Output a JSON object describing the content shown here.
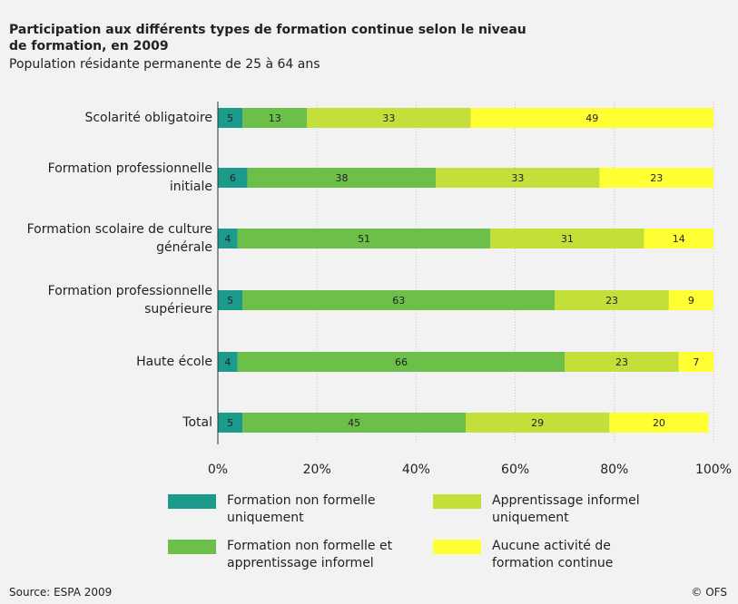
{
  "chart_data": {
    "type": "stacked-bar-horizontal",
    "title": "Participation aux différents types de formation continue selon le niveau\nde formation, en 2009",
    "subtitle": "Population résidante permanente de 25 à 64 ans",
    "categories": [
      "Scolarité obligatoire",
      "Formation professionnelle\ninitiale",
      "Formation scolaire de culture\ngénérale",
      "Formation professionnelle\nsupérieure",
      "Haute école",
      "Total"
    ],
    "series": [
      {
        "name": "Formation non formelle\nuniquement",
        "color": "#1c9a8c",
        "values": [
          5,
          6,
          4,
          5,
          4,
          5
        ]
      },
      {
        "name": "Formation non formelle et\napprentissage informel",
        "color": "#6cc04a",
        "values": [
          13,
          38,
          51,
          63,
          66,
          45
        ]
      },
      {
        "name": "Apprentissage informel\nuniquement",
        "color": "#c4de3a",
        "values": [
          33,
          33,
          31,
          23,
          23,
          29
        ]
      },
      {
        "name": "Aucune activité de\nformation continue",
        "color": "#ffff33",
        "values": [
          49,
          23,
          14,
          9,
          7,
          20
        ]
      }
    ],
    "xlim": [
      0,
      100
    ],
    "xticks": [
      {
        "value": 0,
        "label": "0%"
      },
      {
        "value": 20,
        "label": "20%"
      },
      {
        "value": 40,
        "label": "40%"
      },
      {
        "value": 60,
        "label": "60%"
      },
      {
        "value": 80,
        "label": "80%"
      },
      {
        "value": 100,
        "label": "100%"
      }
    ],
    "grid": true,
    "source": "Source: ESPA 2009",
    "credit": "© OFS"
  }
}
